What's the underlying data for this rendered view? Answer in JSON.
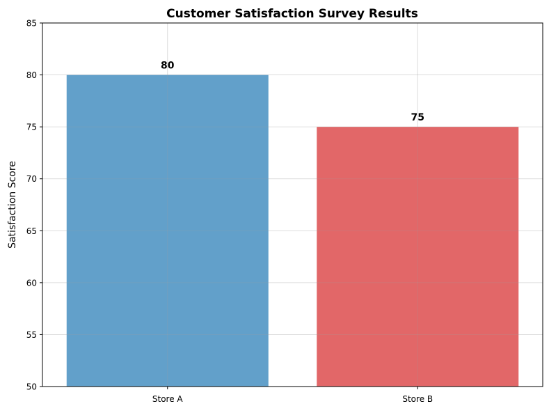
{
  "chart_data": {
    "type": "bar",
    "title": "Customer Satisfaction Survey Results",
    "xlabel": "",
    "ylabel": "Satisfaction Score",
    "categories": [
      "Store A",
      "Store B"
    ],
    "values": [
      80,
      75
    ],
    "data_labels": [
      "80",
      "75"
    ],
    "bar_colors": [
      "#1f77b4",
      "#d62728"
    ],
    "bar_opacity": 0.7,
    "ylim": [
      50,
      85
    ],
    "yticks": [
      50,
      55,
      60,
      65,
      70,
      75,
      80,
      85
    ],
    "grid": true,
    "legend": "none"
  }
}
